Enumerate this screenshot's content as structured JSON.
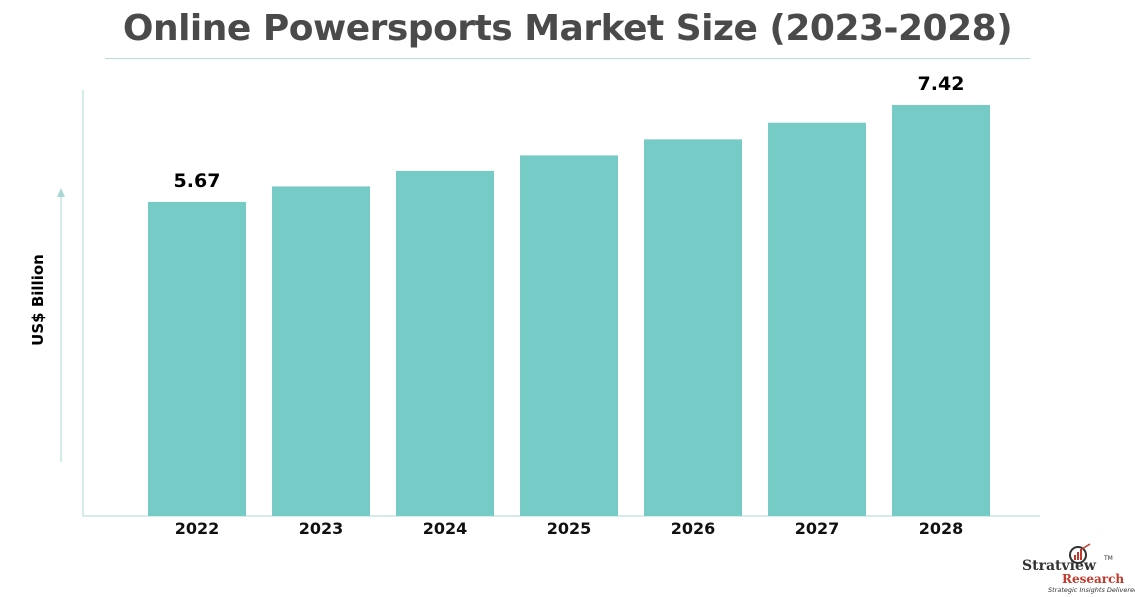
{
  "title": "Online Powersports Market Size (2023-2028)",
  "colors": {
    "bar": "#76cbc7",
    "axis": "#a9d8d4",
    "title": "#4a4a4a"
  },
  "chart_data": {
    "type": "bar",
    "title": "Online Powersports Market Size (2023-2028)",
    "xlabel": "",
    "ylabel": "US$ Billion",
    "categories": [
      "2022",
      "2023",
      "2024",
      "2025",
      "2026",
      "2027",
      "2028"
    ],
    "values": [
      5.67,
      5.95,
      6.23,
      6.51,
      6.8,
      7.1,
      7.42
    ],
    "data_labels": [
      "5.67",
      "",
      "",
      "",
      "",
      "",
      "7.42"
    ],
    "ylim": [
      0,
      7.42
    ],
    "grid": false,
    "legend": "none"
  },
  "logo": {
    "name": "Stratview",
    "trademark": "TM",
    "sub": "Research",
    "tagline": "Strategic Insights Delivered"
  }
}
